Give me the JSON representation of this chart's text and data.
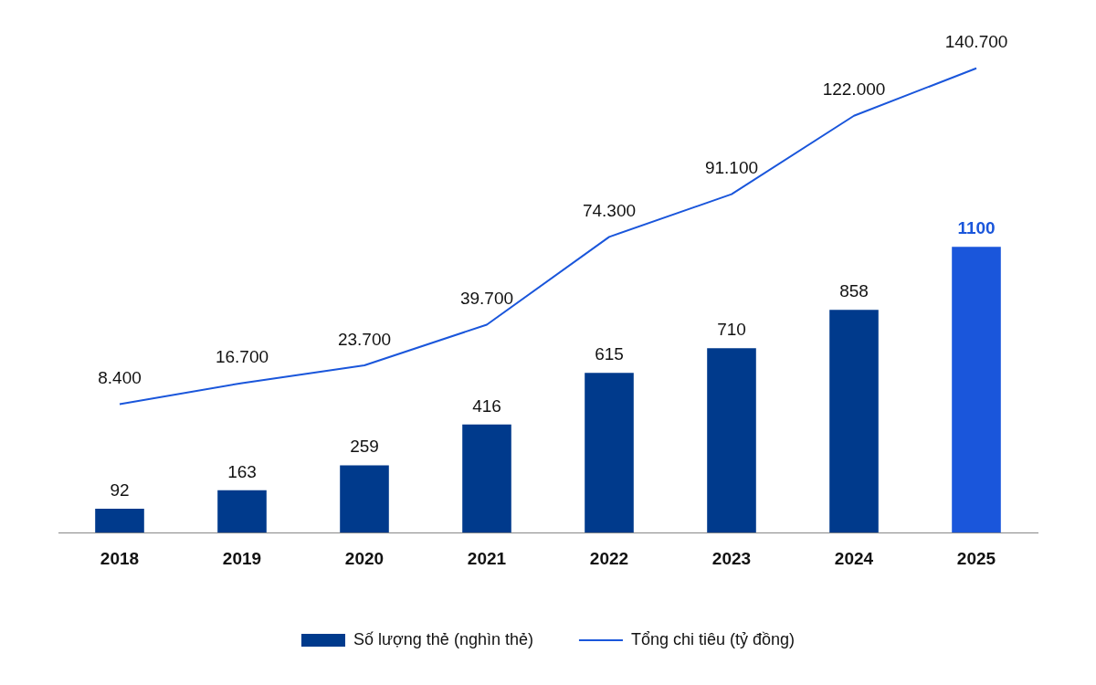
{
  "chart_data": {
    "type": "bar",
    "categories": [
      "2018",
      "2019",
      "2020",
      "2021",
      "2022",
      "2023",
      "2024",
      "2025"
    ],
    "series": [
      {
        "name": "Số lượng thẻ (nghìn thẻ)",
        "color": "#003a8c",
        "colors": [
          "#003a8c",
          "#003a8c",
          "#003a8c",
          "#003a8c",
          "#003a8c",
          "#003a8c",
          "#003a8c",
          "#1a56db"
        ],
        "values": [
          92,
          163,
          259,
          416,
          615,
          710,
          858,
          1100
        ],
        "value_labels": [
          "92",
          "163",
          "259",
          "416",
          "615",
          "710",
          "858",
          "1100"
        ]
      },
      {
        "name": "Tổng chi tiêu (tỷ đồng)",
        "type": "line",
        "axis": "y2",
        "color": "#1a56db",
        "values": [
          8400,
          16700,
          23700,
          39700,
          74300,
          91100,
          122000,
          140700
        ],
        "value_labels": [
          "8.400",
          "16.700",
          "23.700",
          "39.700",
          "74.300",
          "91.100",
          "122.000",
          "140.700"
        ]
      }
    ],
    "grid": false,
    "legend": "bottom",
    "marker": "none",
    "line_style": "solid",
    "tick_labels": "x"
  }
}
